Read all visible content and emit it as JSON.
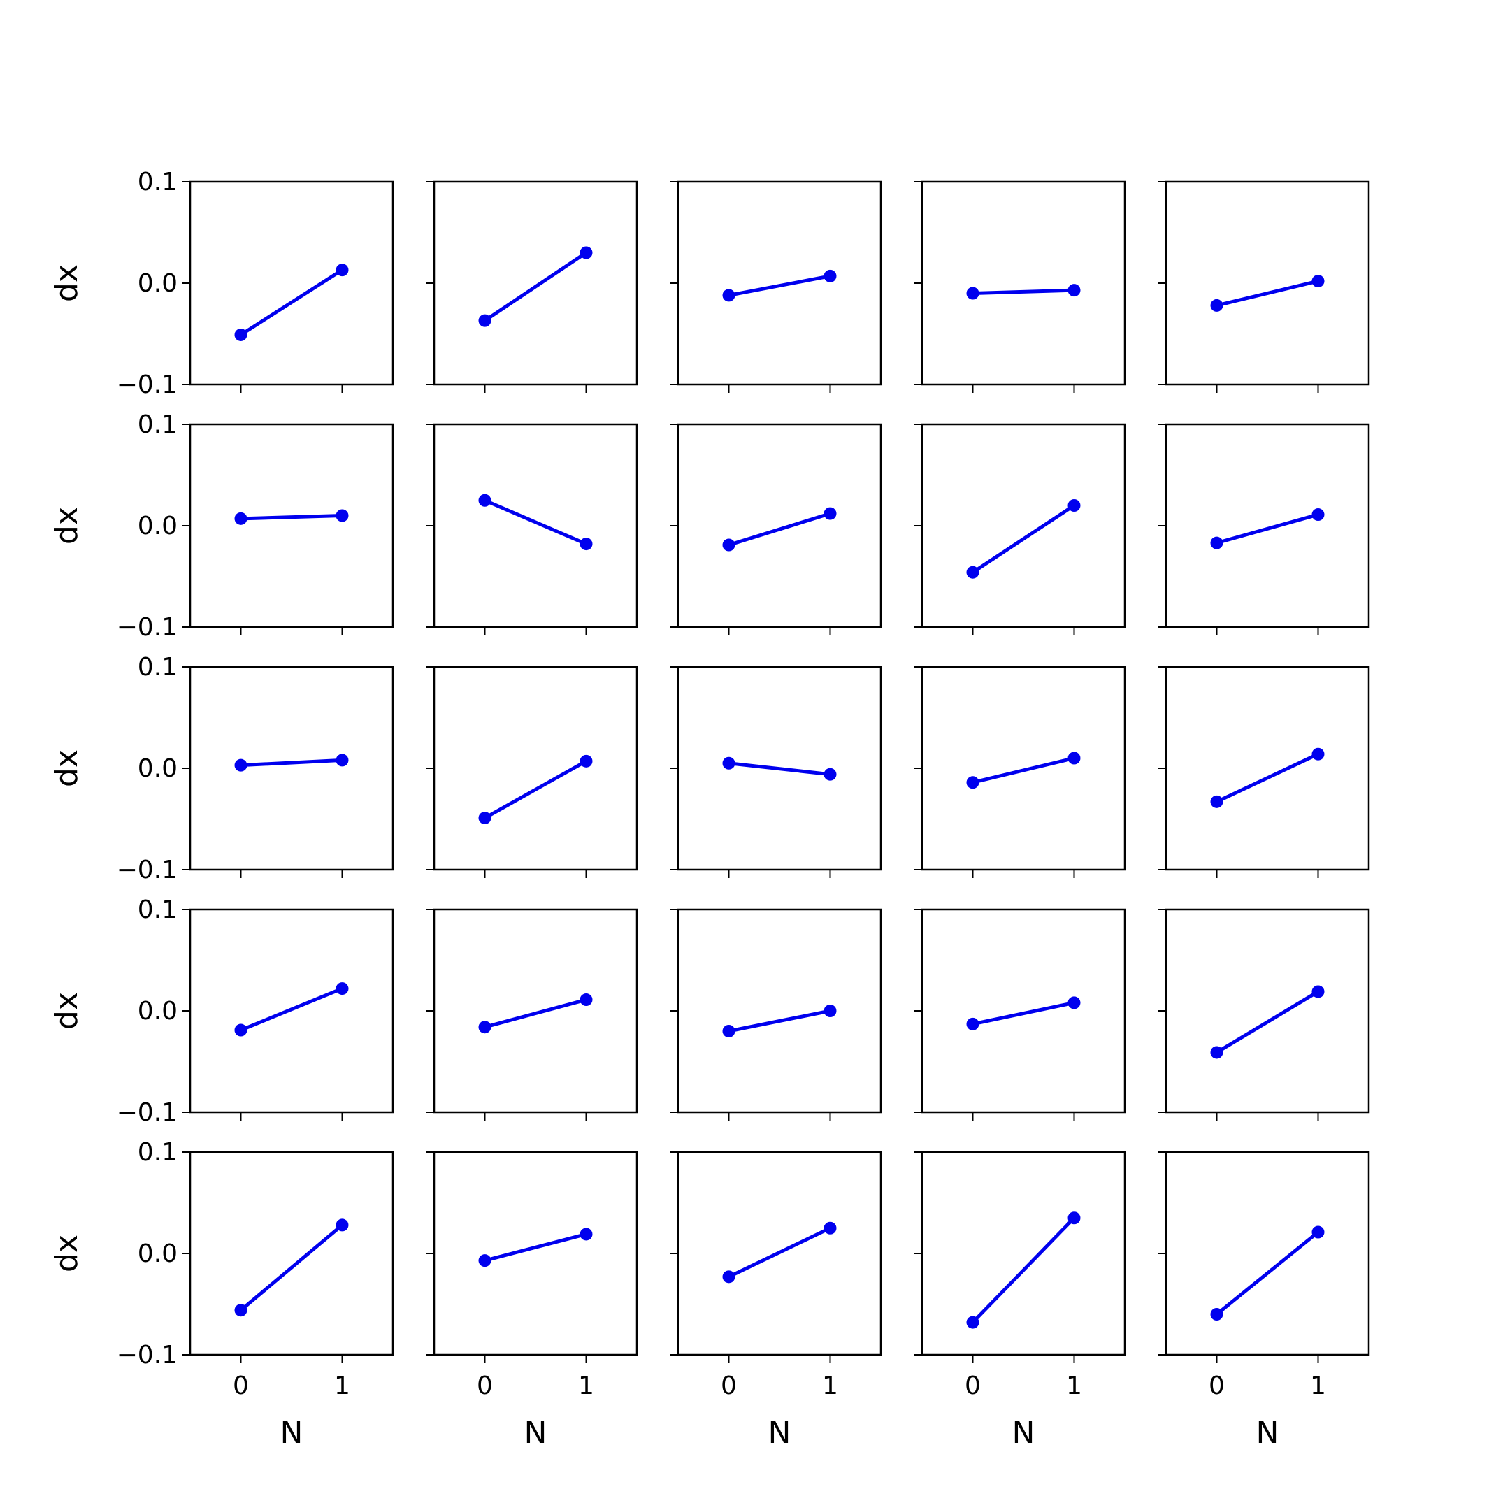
{
  "chart_data": {
    "type": "line",
    "layout": {
      "rows": 5,
      "cols": 5,
      "sharex": true,
      "sharey": true
    },
    "xlabel": "N",
    "ylabel": "dx",
    "x": [
      0,
      1
    ],
    "xticks": [
      0,
      1
    ],
    "xtick_labels": [
      "0",
      "1"
    ],
    "xlim": [
      -0.5,
      1.5
    ],
    "ylim": [
      -0.1,
      0.1
    ],
    "yticks": [
      -0.1,
      0.0,
      0.1
    ],
    "ytick_labels": [
      "−0.1",
      "0.0",
      "0.1"
    ],
    "grid": false,
    "line_color": "#0000ee",
    "marker": "circle",
    "subplots": [
      {
        "row": 0,
        "col": 0,
        "values": [
          -0.051,
          0.013
        ]
      },
      {
        "row": 0,
        "col": 1,
        "values": [
          -0.037,
          0.03
        ]
      },
      {
        "row": 0,
        "col": 2,
        "values": [
          -0.012,
          0.007
        ]
      },
      {
        "row": 0,
        "col": 3,
        "values": [
          -0.01,
          -0.007
        ]
      },
      {
        "row": 0,
        "col": 4,
        "values": [
          -0.022,
          0.002
        ]
      },
      {
        "row": 1,
        "col": 0,
        "values": [
          0.007,
          0.01
        ]
      },
      {
        "row": 1,
        "col": 1,
        "values": [
          0.025,
          -0.018
        ]
      },
      {
        "row": 1,
        "col": 2,
        "values": [
          -0.019,
          0.012
        ]
      },
      {
        "row": 1,
        "col": 3,
        "values": [
          -0.046,
          0.02
        ]
      },
      {
        "row": 1,
        "col": 4,
        "values": [
          -0.017,
          0.011
        ]
      },
      {
        "row": 2,
        "col": 0,
        "values": [
          0.003,
          0.008
        ]
      },
      {
        "row": 2,
        "col": 1,
        "values": [
          -0.049,
          0.007
        ]
      },
      {
        "row": 2,
        "col": 2,
        "values": [
          0.005,
          -0.006
        ]
      },
      {
        "row": 2,
        "col": 3,
        "values": [
          -0.014,
          0.01
        ]
      },
      {
        "row": 2,
        "col": 4,
        "values": [
          -0.033,
          0.014
        ]
      },
      {
        "row": 3,
        "col": 0,
        "values": [
          -0.019,
          0.022
        ]
      },
      {
        "row": 3,
        "col": 1,
        "values": [
          -0.016,
          0.011
        ]
      },
      {
        "row": 3,
        "col": 2,
        "values": [
          -0.02,
          0.0
        ]
      },
      {
        "row": 3,
        "col": 3,
        "values": [
          -0.013,
          0.008
        ]
      },
      {
        "row": 3,
        "col": 4,
        "values": [
          -0.041,
          0.019
        ]
      },
      {
        "row": 4,
        "col": 0,
        "values": [
          -0.056,
          0.028
        ]
      },
      {
        "row": 4,
        "col": 1,
        "values": [
          -0.007,
          0.019
        ]
      },
      {
        "row": 4,
        "col": 2,
        "values": [
          -0.023,
          0.025
        ]
      },
      {
        "row": 4,
        "col": 3,
        "values": [
          -0.068,
          0.035
        ]
      },
      {
        "row": 4,
        "col": 4,
        "values": [
          -0.06,
          0.021
        ]
      }
    ]
  }
}
